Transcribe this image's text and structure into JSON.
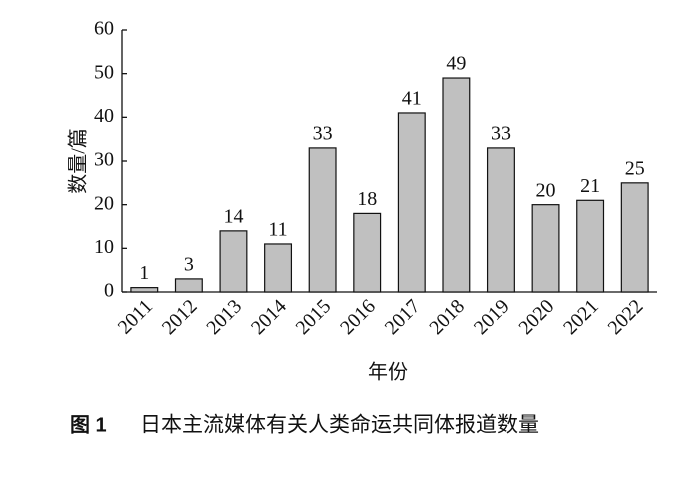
{
  "chart_data": {
    "type": "bar",
    "caption_label": "图 1",
    "title": "日本主流媒体有关人类命运共同体报道数量",
    "x_label": "年份",
    "y_label": "数量/篇",
    "categories": [
      "2011",
      "2012",
      "2013",
      "2014",
      "2015",
      "2016",
      "2017",
      "2018",
      "2019",
      "2020",
      "2021",
      "2022"
    ],
    "values": [
      1,
      3,
      14,
      11,
      33,
      18,
      41,
      49,
      33,
      20,
      21,
      25
    ],
    "color": "#c0c0c0",
    "ylim": [
      0,
      60
    ],
    "yticks": [
      0,
      10,
      20,
      30,
      40,
      50,
      60
    ],
    "grid": false
  }
}
